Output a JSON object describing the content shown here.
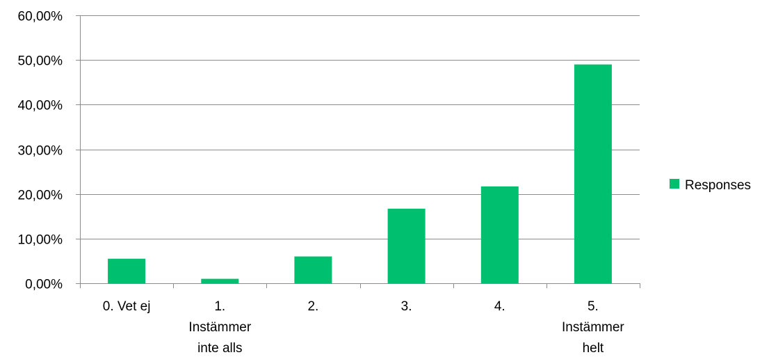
{
  "chart_data": {
    "type": "bar",
    "categories": [
      [
        "0. Vet ej"
      ],
      [
        "1.",
        "Instämmer",
        "inte alls"
      ],
      [
        "2."
      ],
      [
        "3."
      ],
      [
        "4."
      ],
      [
        "5.",
        "Instämmer",
        "helt"
      ]
    ],
    "series": [
      {
        "name": "Responses",
        "color": "#00BF6F",
        "values": [
          5.5,
          1.0,
          6.0,
          16.7,
          21.7,
          49.0
        ]
      }
    ],
    "ylim": [
      0,
      60
    ],
    "yticks": [
      0,
      10,
      20,
      30,
      40,
      50,
      60
    ],
    "ytick_labels": [
      "0,00%",
      "10,00%",
      "20,00%",
      "30,00%",
      "40,00%",
      "50,00%",
      "60,00%"
    ],
    "grid": true,
    "legend": "right",
    "title": "",
    "xlabel": "",
    "ylabel": ""
  }
}
